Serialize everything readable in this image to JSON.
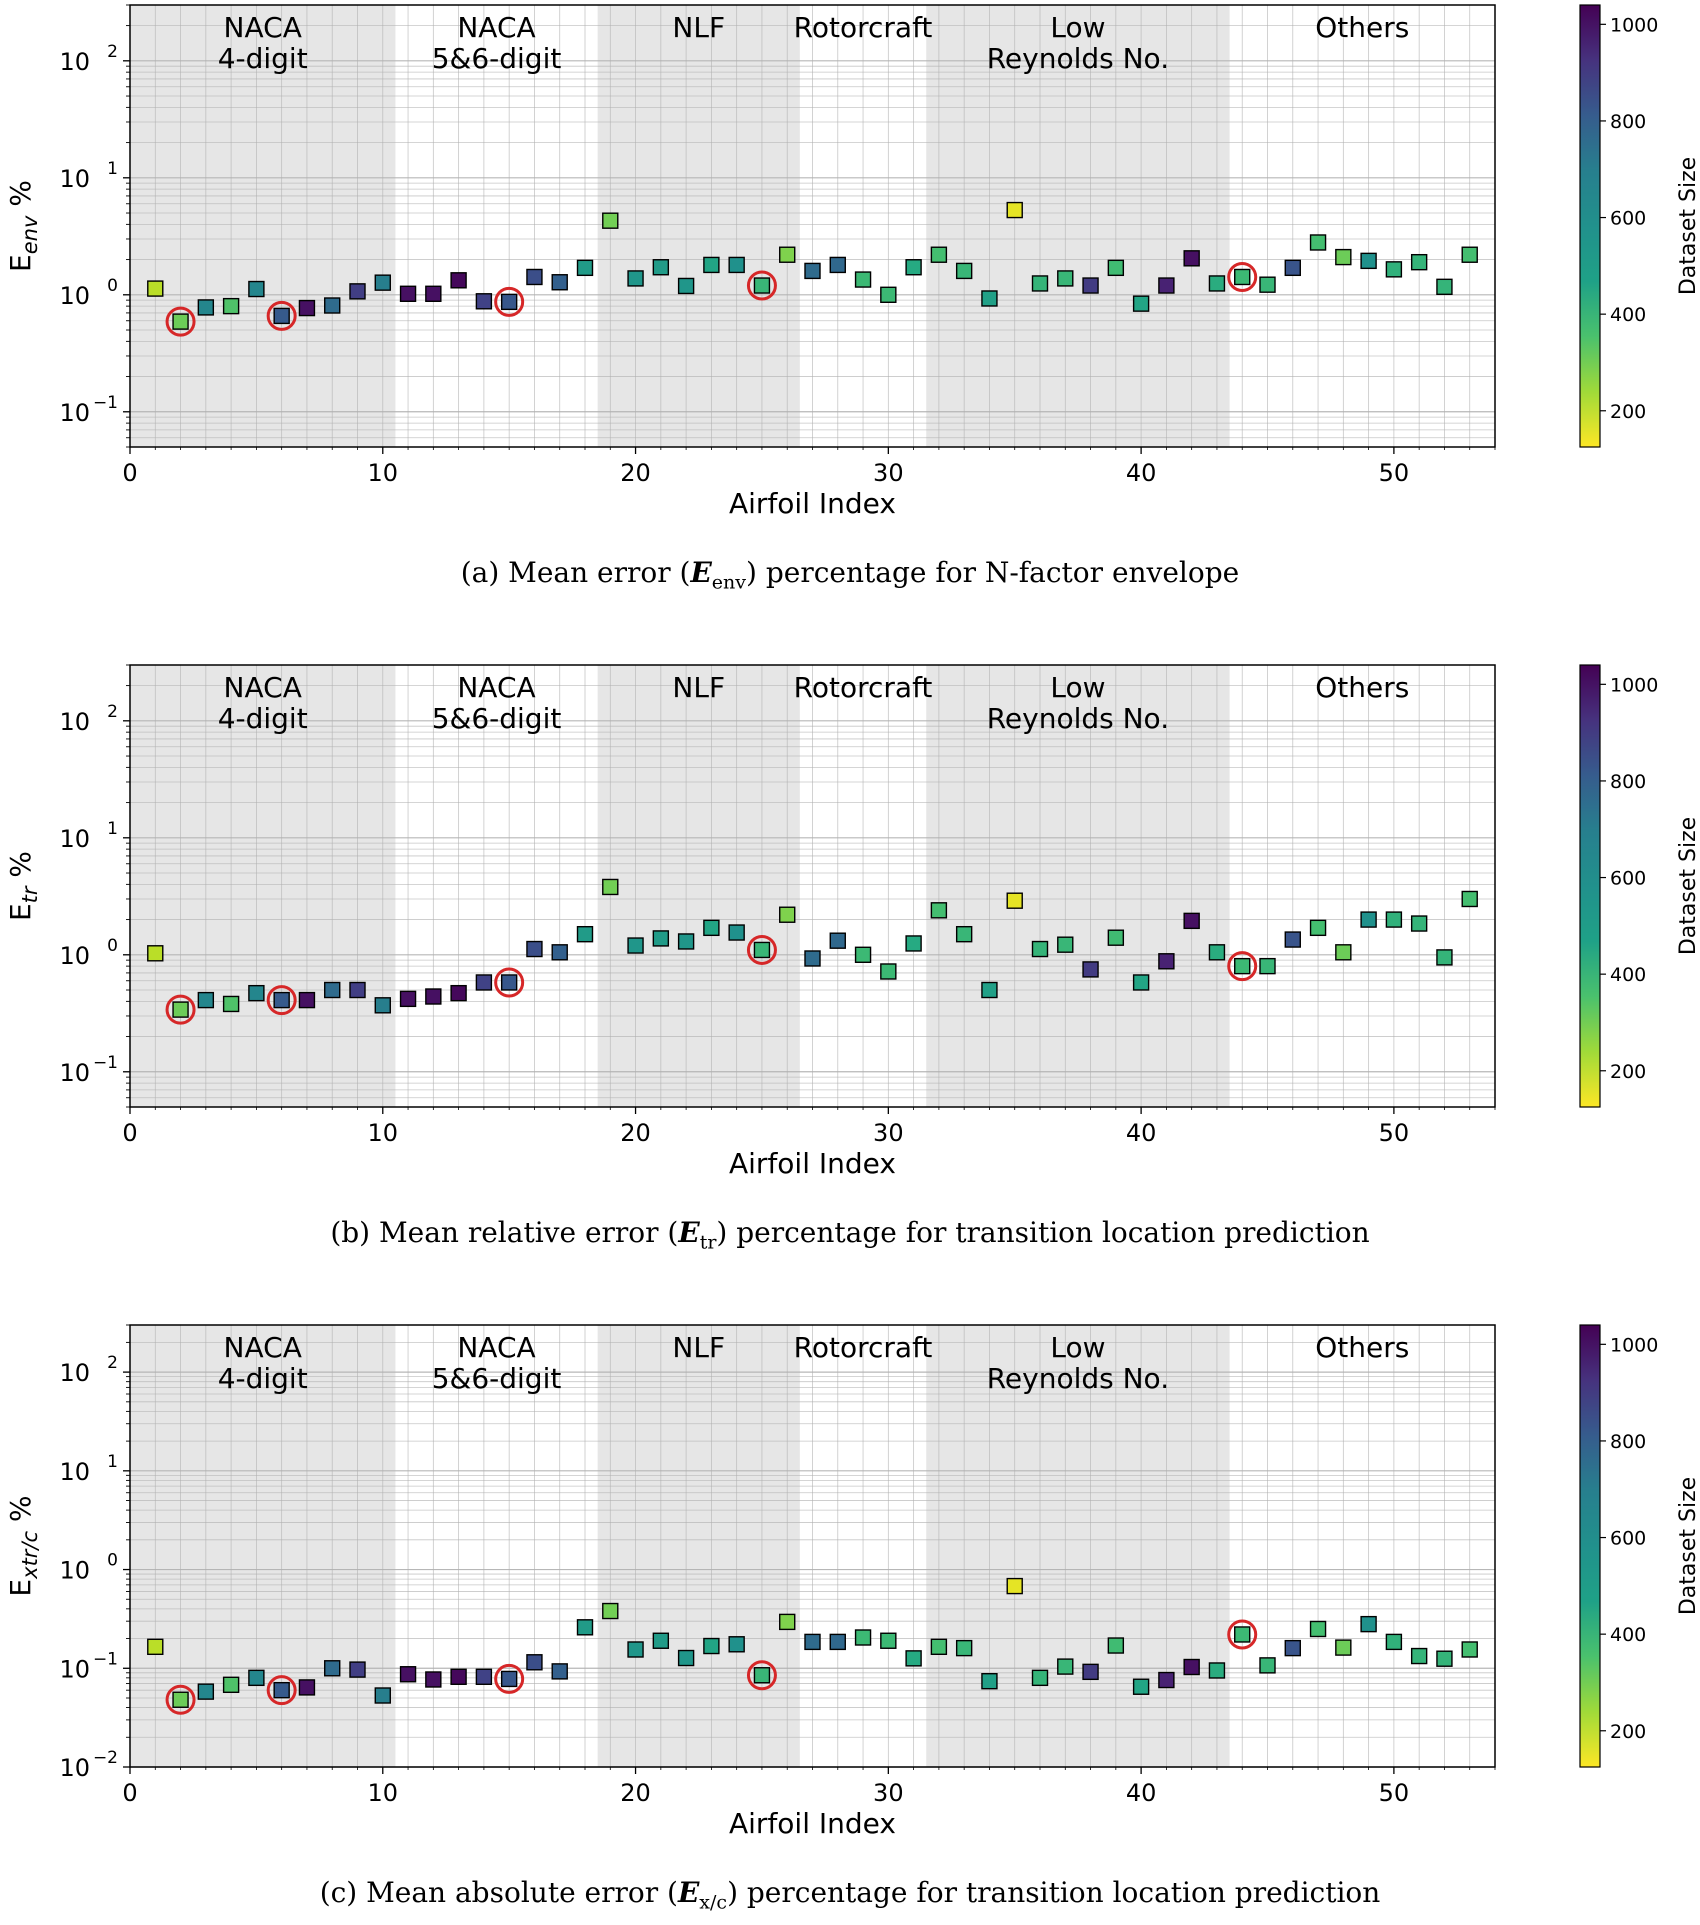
{
  "chart_data": [
    {
      "type": "scatter",
      "caption": "(a) Mean error (Eenv) percentage for N-factor envelope",
      "ylabel_main": "E",
      "ylabel_sub": "env",
      "ylabel_suffix": " %",
      "xlabel": "Airfoil Index",
      "yscale": "log",
      "ylim": [
        0.05,
        300
      ],
      "xlim": [
        0,
        54
      ],
      "yticks": [
        0.1,
        1,
        10,
        100
      ],
      "ytick_base": "10",
      "ytick_exps": [
        "−1",
        "0",
        "1",
        "2"
      ],
      "xticks": [
        0,
        10,
        20,
        30,
        40,
        50
      ],
      "x": [
        1,
        2,
        3,
        4,
        5,
        6,
        7,
        8,
        9,
        10,
        11,
        12,
        13,
        14,
        15,
        16,
        17,
        18,
        19,
        20,
        21,
        22,
        23,
        24,
        25,
        26,
        27,
        28,
        29,
        30,
        31,
        32,
        33,
        34,
        35,
        36,
        37,
        38,
        39,
        40,
        41,
        42,
        43,
        44,
        45,
        46,
        47,
        48,
        49,
        50,
        51,
        52,
        53
      ],
      "values": [
        1.13,
        0.59,
        0.78,
        0.8,
        1.12,
        0.66,
        0.77,
        0.81,
        1.07,
        1.27,
        1.02,
        1.02,
        1.33,
        0.88,
        0.87,
        1.42,
        1.28,
        1.7,
        4.3,
        1.38,
        1.72,
        1.19,
        1.8,
        1.8,
        1.2,
        2.2,
        1.6,
        1.8,
        1.35,
        1.0,
        1.72,
        2.2,
        1.6,
        0.93,
        5.3,
        1.25,
        1.38,
        1.2,
        1.7,
        0.84,
        1.2,
        2.05,
        1.25,
        1.42,
        1.22,
        1.7,
        2.8,
        2.1,
        1.95,
        1.65,
        1.9,
        1.17,
        2.2
      ],
      "dataset_size": [
        220,
        330,
        620,
        380,
        620,
        780,
        1000,
        720,
        870,
        650,
        1000,
        1000,
        1020,
        860,
        790,
        820,
        760,
        540,
        320,
        560,
        540,
        560,
        500,
        580,
        430,
        300,
        720,
        730,
        420,
        420,
        480,
        400,
        430,
        520,
        160,
        440,
        430,
        880,
        410,
        500,
        950,
        1000,
        470,
        420,
        430,
        800,
        400,
        330,
        580,
        450,
        440,
        440,
        400
      ],
      "highlighted_x": [
        2,
        6,
        15,
        25,
        44
      ],
      "colorbar_label": "Dataset Size",
      "colorbar_range": [
        125,
        1040
      ],
      "colorbar_ticks": [
        200,
        400,
        600,
        800,
        1000
      ]
    },
    {
      "type": "scatter",
      "caption": "(b) Mean relative error (Etr) percentage for transition location prediction",
      "ylabel_main": "E",
      "ylabel_sub": "tr",
      "ylabel_suffix": " %",
      "xlabel": "Airfoil Index",
      "yscale": "log",
      "ylim": [
        0.05,
        300
      ],
      "xlim": [
        0,
        54
      ],
      "yticks": [
        0.1,
        1,
        10,
        100
      ],
      "ytick_base": "10",
      "ytick_exps": [
        "−1",
        "0",
        "1",
        "2"
      ],
      "xticks": [
        0,
        10,
        20,
        30,
        40,
        50
      ],
      "x": [
        1,
        2,
        3,
        4,
        5,
        6,
        7,
        8,
        9,
        10,
        11,
        12,
        13,
        14,
        15,
        16,
        17,
        18,
        19,
        20,
        21,
        22,
        23,
        24,
        25,
        26,
        27,
        28,
        29,
        30,
        31,
        32,
        33,
        34,
        35,
        36,
        37,
        38,
        39,
        40,
        41,
        42,
        43,
        44,
        45,
        46,
        47,
        48,
        49,
        50,
        51,
        52,
        53
      ],
      "values": [
        1.03,
        0.34,
        0.41,
        0.38,
        0.47,
        0.41,
        0.41,
        0.5,
        0.5,
        0.37,
        0.42,
        0.44,
        0.47,
        0.58,
        0.58,
        1.12,
        1.05,
        1.5,
        3.8,
        1.2,
        1.38,
        1.3,
        1.7,
        1.55,
        1.1,
        2.2,
        0.93,
        1.32,
        1.0,
        0.72,
        1.25,
        2.4,
        1.5,
        0.5,
        2.9,
        1.12,
        1.22,
        0.75,
        1.4,
        0.58,
        0.88,
        1.95,
        1.05,
        0.8,
        0.8,
        1.35,
        1.7,
        1.05,
        2.0,
        2.0,
        1.85,
        0.95,
        3.0
      ],
      "dataset_size": [
        220,
        330,
        620,
        380,
        620,
        780,
        1000,
        720,
        870,
        650,
        1000,
        1000,
        1020,
        860,
        790,
        820,
        760,
        540,
        320,
        560,
        540,
        560,
        500,
        580,
        430,
        300,
        720,
        730,
        420,
        420,
        480,
        400,
        430,
        520,
        160,
        440,
        430,
        880,
        410,
        500,
        950,
        1000,
        470,
        420,
        430,
        800,
        400,
        330,
        580,
        450,
        440,
        440,
        400
      ],
      "highlighted_x": [
        2,
        6,
        15,
        25,
        44
      ],
      "colorbar_label": "Dataset Size",
      "colorbar_range": [
        125,
        1040
      ],
      "colorbar_ticks": [
        200,
        400,
        600,
        800,
        1000
      ]
    },
    {
      "type": "scatter",
      "caption": "(c) Mean absolute error (Ex/c) percentage for transition location prediction",
      "ylabel_main": "E",
      "ylabel_sub": "xtr/c",
      "ylabel_suffix": " %",
      "xlabel": "Airfoil Index",
      "yscale": "log",
      "ylim": [
        0.01,
        300
      ],
      "xlim": [
        0,
        54
      ],
      "yticks": [
        0.01,
        0.1,
        1,
        10,
        100
      ],
      "ytick_base": "10",
      "ytick_exps": [
        "−2",
        "−1",
        "0",
        "1",
        "2"
      ],
      "xticks": [
        0,
        10,
        20,
        30,
        40,
        50
      ],
      "x": [
        1,
        2,
        3,
        4,
        5,
        6,
        7,
        8,
        9,
        10,
        11,
        12,
        13,
        14,
        15,
        16,
        17,
        18,
        19,
        20,
        21,
        22,
        23,
        24,
        25,
        26,
        27,
        28,
        29,
        30,
        31,
        32,
        33,
        34,
        35,
        36,
        37,
        38,
        39,
        40,
        41,
        42,
        43,
        44,
        45,
        46,
        47,
        48,
        49,
        50,
        51,
        52,
        53
      ],
      "values": [
        0.165,
        0.048,
        0.058,
        0.068,
        0.08,
        0.06,
        0.064,
        0.1,
        0.097,
        0.053,
        0.087,
        0.077,
        0.082,
        0.082,
        0.078,
        0.115,
        0.093,
        0.26,
        0.38,
        0.155,
        0.19,
        0.127,
        0.168,
        0.175,
        0.085,
        0.295,
        0.185,
        0.185,
        0.205,
        0.19,
        0.126,
        0.165,
        0.16,
        0.074,
        0.68,
        0.08,
        0.104,
        0.092,
        0.17,
        0.065,
        0.076,
        0.103,
        0.095,
        0.22,
        0.107,
        0.16,
        0.25,
        0.162,
        0.28,
        0.185,
        0.133,
        0.125,
        0.155
      ],
      "dataset_size": [
        220,
        330,
        620,
        380,
        620,
        780,
        1000,
        720,
        870,
        650,
        1000,
        1000,
        1020,
        860,
        790,
        820,
        760,
        540,
        320,
        560,
        540,
        560,
        500,
        580,
        430,
        300,
        720,
        730,
        420,
        420,
        480,
        400,
        430,
        520,
        160,
        440,
        430,
        880,
        410,
        500,
        950,
        1000,
        470,
        420,
        430,
        800,
        400,
        330,
        580,
        450,
        440,
        440,
        400
      ],
      "highlighted_x": [
        2,
        6,
        15,
        25,
        44
      ],
      "colorbar_label": "Dataset Size",
      "colorbar_range": [
        125,
        1040
      ],
      "colorbar_ticks": [
        200,
        400,
        600,
        800,
        1000
      ]
    }
  ],
  "groups": [
    {
      "lines": [
        "NACA",
        "4-digit"
      ],
      "x_range": [
        0,
        10.5
      ],
      "shaded": true
    },
    {
      "lines": [
        "NACA",
        "5&6-digit"
      ],
      "x_range": [
        10.5,
        18.5
      ],
      "shaded": false
    },
    {
      "lines": [
        "NLF"
      ],
      "x_range": [
        18.5,
        26.5
      ],
      "shaded": true
    },
    {
      "lines": [
        "Rotorcraft"
      ],
      "x_range": [
        26.5,
        31.5
      ],
      "shaded": false
    },
    {
      "lines": [
        "Low",
        "Reynolds No."
      ],
      "x_range": [
        31.5,
        43.5
      ],
      "shaded": true
    },
    {
      "lines": [
        "Others"
      ],
      "x_range": [
        43.5,
        54
      ],
      "shaded": false
    }
  ],
  "captions": [
    {
      "prefix": "(a) Mean error (",
      "sym": "E",
      "sub": "env",
      "suffix": ") percentage for N-factor envelope"
    },
    {
      "prefix": "(b) Mean relative error (",
      "sym": "E",
      "sub": "tr",
      "suffix": ") percentage for transition location prediction"
    },
    {
      "prefix": "(c) Mean absolute error (",
      "sym": "E",
      "sub": "x/c",
      "suffix": ") percentage for transition location prediction"
    }
  ],
  "colors": {
    "shade": "#e6e6e6",
    "grid": "#b0b0b0",
    "highlight": "#d62728",
    "marker_edge": "#000000"
  }
}
